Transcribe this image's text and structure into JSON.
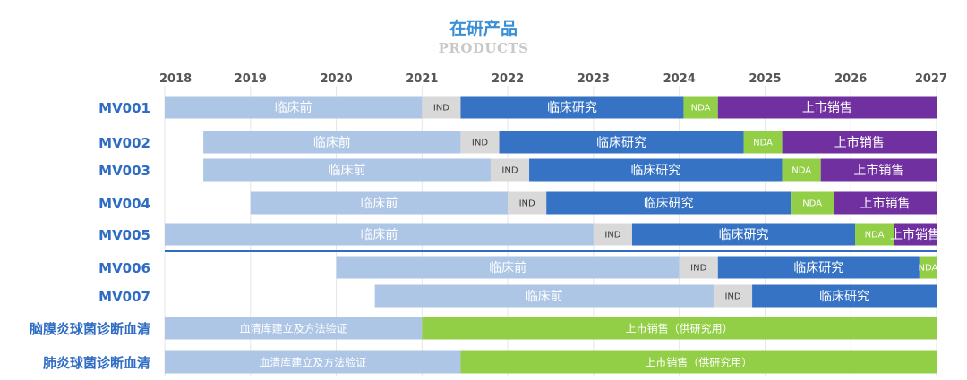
{
  "chart_data": {
    "type": "gantt",
    "title": "在研产品",
    "subtitle": "PRODUCTS",
    "x_ticks": [
      2018,
      2019,
      2020,
      2021,
      2022,
      2023,
      2024,
      2025,
      2026,
      2027
    ],
    "xlim": [
      2018,
      2027
    ],
    "colors": {
      "临床前": "#aec6e6",
      "IND": "#d9d9d9",
      "临床研究": "#3673c4",
      "NDA": "#92cf47",
      "上市销售": "#7030a0",
      "血清库建立及方法验证": "#aec6e6",
      "上市销售（供研究用）": "#92cf47",
      "label": "#2f6cc3",
      "separator": "#2f6cc3"
    },
    "rows": [
      {
        "name": "MV001",
        "segments": [
          {
            "phase": "临床前",
            "start": 2018.0,
            "end": 2021.0
          },
          {
            "phase": "IND",
            "start": 2021.0,
            "end": 2021.45
          },
          {
            "phase": "临床研究",
            "start": 2021.45,
            "end": 2024.05
          },
          {
            "phase": "NDA",
            "start": 2024.05,
            "end": 2024.45
          },
          {
            "phase": "上市销售",
            "start": 2024.45,
            "end": 2027.0
          }
        ]
      },
      {
        "name": "MV002",
        "segments": [
          {
            "phase": "临床前",
            "start": 2018.45,
            "end": 2021.45
          },
          {
            "phase": "IND",
            "start": 2021.45,
            "end": 2021.9
          },
          {
            "phase": "临床研究",
            "start": 2021.9,
            "end": 2024.75
          },
          {
            "phase": "NDA",
            "start": 2024.75,
            "end": 2025.2
          },
          {
            "phase": "上市销售",
            "start": 2025.2,
            "end": 2027.0
          }
        ]
      },
      {
        "name": "MV003",
        "segments": [
          {
            "phase": "临床前",
            "start": 2018.45,
            "end": 2021.8
          },
          {
            "phase": "IND",
            "start": 2021.8,
            "end": 2022.25
          },
          {
            "phase": "临床研究",
            "start": 2022.25,
            "end": 2025.2
          },
          {
            "phase": "NDA",
            "start": 2025.2,
            "end": 2025.65
          },
          {
            "phase": "上市销售",
            "start": 2025.65,
            "end": 2027.0
          }
        ]
      },
      {
        "name": "MV004",
        "segments": [
          {
            "phase": "临床前",
            "start": 2019.0,
            "end": 2022.0
          },
          {
            "phase": "IND",
            "start": 2022.0,
            "end": 2022.45
          },
          {
            "phase": "临床研究",
            "start": 2022.45,
            "end": 2025.3
          },
          {
            "phase": "NDA",
            "start": 2025.3,
            "end": 2025.8
          },
          {
            "phase": "上市销售",
            "start": 2025.8,
            "end": 2027.0
          }
        ]
      },
      {
        "name": "MV005",
        "segments": [
          {
            "phase": "临床前",
            "start": 2018.0,
            "end": 2023.0
          },
          {
            "phase": "IND",
            "start": 2023.0,
            "end": 2023.45
          },
          {
            "phase": "临床研究",
            "start": 2023.45,
            "end": 2026.05
          },
          {
            "phase": "NDA",
            "start": 2026.05,
            "end": 2026.5
          },
          {
            "phase": "上市销售",
            "start": 2026.5,
            "end": 2027.0
          }
        ]
      },
      {
        "name": "MV006",
        "segments": [
          {
            "phase": "临床前",
            "start": 2020.0,
            "end": 2024.0
          },
          {
            "phase": "IND",
            "start": 2024.0,
            "end": 2024.45
          },
          {
            "phase": "临床研究",
            "start": 2024.45,
            "end": 2026.8
          },
          {
            "phase": "NDA",
            "start": 2026.8,
            "end": 2027.0
          }
        ]
      },
      {
        "name": "MV007",
        "segments": [
          {
            "phase": "临床前",
            "start": 2020.45,
            "end": 2024.4
          },
          {
            "phase": "IND",
            "start": 2024.4,
            "end": 2024.85
          },
          {
            "phase": "临床研究",
            "start": 2024.85,
            "end": 2027.0
          }
        ]
      },
      {
        "name": "脑膜炎球菌诊断血清",
        "segments": [
          {
            "phase": "血清库建立及方法验证",
            "start": 2018.0,
            "end": 2021.0
          },
          {
            "phase": "上市销售（供研究用）",
            "start": 2021.0,
            "end": 2027.0
          }
        ]
      },
      {
        "name": "肺炎球菌诊断血清",
        "segments": [
          {
            "phase": "血清库建立及方法验证",
            "start": 2018.0,
            "end": 2021.45
          },
          {
            "phase": "上市销售（供研究用）",
            "start": 2021.45,
            "end": 2027.0
          }
        ]
      }
    ]
  }
}
